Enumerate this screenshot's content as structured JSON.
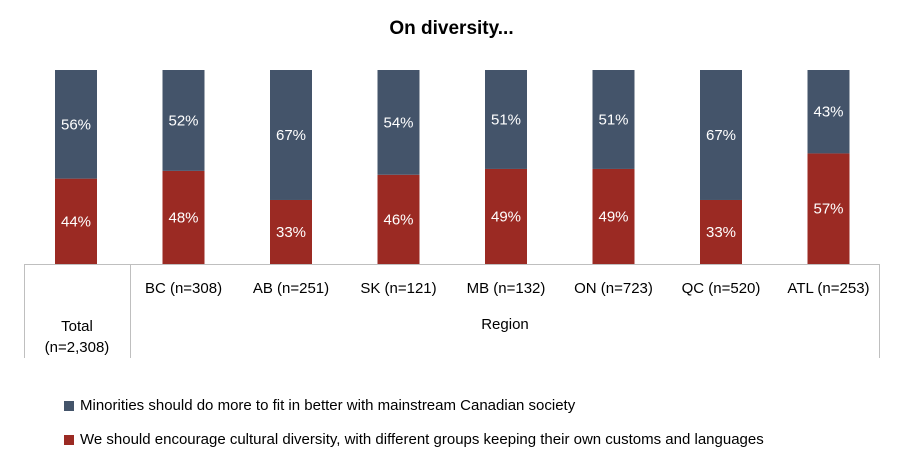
{
  "chart_data": {
    "type": "bar",
    "stacked": true,
    "title": "On diversity...",
    "categories": [
      "Total (n=2,308)",
      "BC (n=308)",
      "AB (n=251)",
      "SK (n=121)",
      "MB (n=132)",
      "ON (n=723)",
      "QC (n=520)",
      "ATL (n=253)"
    ],
    "category_lines": [
      [
        "Total",
        "(n=2,308)"
      ],
      [
        "BC (n=308)"
      ],
      [
        "AB (n=251)"
      ],
      [
        "SK (n=121)"
      ],
      [
        "MB (n=132)"
      ],
      [
        "ON (n=723)"
      ],
      [
        "QC (n=520)"
      ],
      [
        "ATL (n=253)"
      ]
    ],
    "group_label": "Region",
    "series": [
      {
        "name": "We should encourage cultural diversity, with different groups keeping their own customs and languages",
        "color": "#9B2A23",
        "values": [
          44,
          48,
          33,
          46,
          49,
          49,
          33,
          57
        ],
        "labels": [
          "44%",
          "48%",
          "33%",
          "46%",
          "49%",
          "49%",
          "33%",
          "57%"
        ]
      },
      {
        "name": "Minorities should do more to fit in better with mainstream Canadian society",
        "color": "#44546A",
        "values": [
          56,
          52,
          67,
          54,
          51,
          51,
          67,
          43
        ],
        "labels": [
          "56%",
          "52%",
          "67%",
          "54%",
          "51%",
          "51%",
          "67%",
          "43%"
        ]
      }
    ],
    "ylim": [
      0,
      100
    ],
    "legend_position": "bottom",
    "legend": [
      {
        "name": "Minorities should do more to fit in better with mainstream Canadian society",
        "color": "#44546A"
      },
      {
        "name": "We should encourage cultural diversity, with different groups keeping their own customs and languages",
        "color": "#9B2A23"
      }
    ]
  }
}
